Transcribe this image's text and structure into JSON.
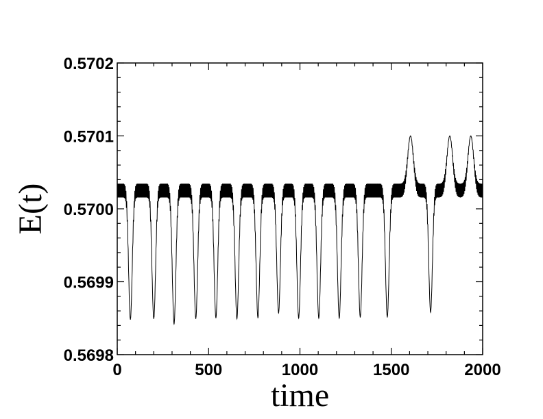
{
  "chart_data": {
    "type": "line",
    "title": "",
    "xlabel": "time",
    "ylabel": "E(t)",
    "xlim": [
      0,
      2000
    ],
    "ylim": [
      0.5698,
      0.5702
    ],
    "x_ticks": [
      0,
      500,
      1000,
      1500,
      2000
    ],
    "x_tick_labels": [
      "0",
      "500",
      "1000",
      "1500",
      "2000"
    ],
    "y_ticks": [
      0.5698,
      0.5699,
      0.57,
      0.5701,
      0.5702
    ],
    "y_tick_labels": [
      "0.5698",
      "0.5699",
      "0.5700",
      "0.5701",
      "0.5702"
    ],
    "grid": false,
    "legend": false,
    "line_color": "#000000",
    "baseline": 0.570025,
    "oscillation_amplitude": 9.5e-06,
    "dips": [
      {
        "x": 72,
        "y": 0.569848
      },
      {
        "x": 200,
        "y": 0.569849
      },
      {
        "x": 311,
        "y": 0.569842
      },
      {
        "x": 430,
        "y": 0.569849
      },
      {
        "x": 540,
        "y": 0.56985
      },
      {
        "x": 655,
        "y": 0.569849
      },
      {
        "x": 770,
        "y": 0.56985
      },
      {
        "x": 883,
        "y": 0.569857
      },
      {
        "x": 993,
        "y": 0.56985
      },
      {
        "x": 1103,
        "y": 0.56985
      },
      {
        "x": 1215,
        "y": 0.56985
      },
      {
        "x": 1330,
        "y": 0.569851
      },
      {
        "x": 1478,
        "y": 0.569851
      },
      {
        "x": 1715,
        "y": 0.569858
      }
    ],
    "peaks": [
      {
        "x": 1605,
        "y": 0.5701
      },
      {
        "x": 1820,
        "y": 0.5701
      },
      {
        "x": 1935,
        "y": 0.5701
      }
    ]
  }
}
